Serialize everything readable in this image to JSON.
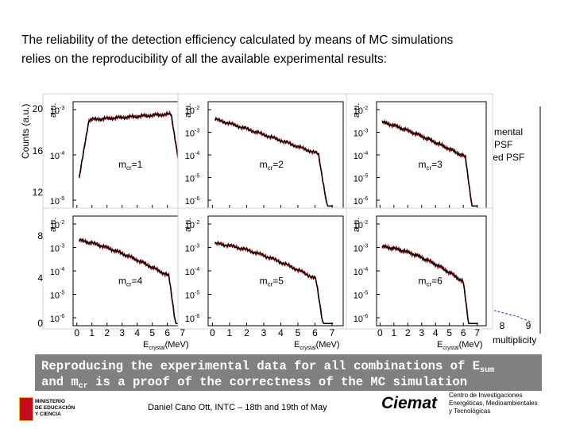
{
  "intro": [
    "The reliability of the detection efficiency calculated by means of MC simulations",
    "relies on the reproducibility of all the available experimental results:"
  ],
  "background_left": {
    "ylabel": "Counts (a.u.)",
    "yticks": [
      20,
      16,
      12,
      8,
      4,
      0
    ]
  },
  "background_right": {
    "legend": [
      "mental",
      "PSF",
      "ted PSF"
    ],
    "xlabel": "multiplicity",
    "xticks": [
      8,
      9
    ]
  },
  "panels": [
    {
      "ylabel": "a.u.",
      "yticks": [
        {
          "base": "10",
          "exp": "-3"
        },
        {
          "base": "10",
          "exp": "-4"
        },
        {
          "base": "10",
          "exp": "-5"
        }
      ],
      "label": {
        "base": "m",
        "sub": "cr",
        "rest": "=1"
      }
    },
    {
      "ylabel": "a.u.",
      "yticks": [
        {
          "base": "10",
          "exp": "-2"
        },
        {
          "base": "10",
          "exp": "-3"
        },
        {
          "base": "10",
          "exp": "-4"
        },
        {
          "base": "10",
          "exp": "-5"
        },
        {
          "base": "10",
          "exp": "-6"
        }
      ],
      "label": {
        "base": "m",
        "sub": "cr",
        "rest": "=2"
      }
    },
    {
      "ylabel": "a.u.",
      "yticks": [
        {
          "base": "10",
          "exp": "-2"
        },
        {
          "base": "10",
          "exp": "-3"
        },
        {
          "base": "10",
          "exp": "-4"
        },
        {
          "base": "10",
          "exp": "-5"
        },
        {
          "base": "10",
          "exp": "-6"
        }
      ],
      "label": {
        "base": "m",
        "sub": "cr",
        "rest": "=3"
      }
    },
    {
      "ylabel": "a.u.",
      "yticks": [
        {
          "base": "10",
          "exp": "-2"
        },
        {
          "base": "10",
          "exp": "-3"
        },
        {
          "base": "10",
          "exp": "-4"
        },
        {
          "base": "10",
          "exp": "-5"
        },
        {
          "base": "10",
          "exp": "-6"
        }
      ],
      "label": {
        "base": "m",
        "sub": "cr",
        "rest": "=4"
      }
    },
    {
      "ylabel": "a.u.",
      "yticks": [
        {
          "base": "10",
          "exp": "-2"
        },
        {
          "base": "10",
          "exp": "-3"
        },
        {
          "base": "10",
          "exp": "-4"
        },
        {
          "base": "10",
          "exp": "-5"
        },
        {
          "base": "10",
          "exp": "-6"
        }
      ],
      "label": {
        "base": "m",
        "sub": "cr",
        "rest": "=5"
      }
    },
    {
      "ylabel": "a.u.",
      "yticks": [
        {
          "base": "10",
          "exp": "-2"
        },
        {
          "base": "10",
          "exp": "-3"
        },
        {
          "base": "10",
          "exp": "-4"
        },
        {
          "base": "10",
          "exp": "-5"
        },
        {
          "base": "10",
          "exp": "-6"
        }
      ],
      "label": {
        "base": "m",
        "sub": "cr",
        "rest": "=6"
      }
    }
  ],
  "xaxis": {
    "ticks": [
      0,
      1,
      2,
      3,
      4,
      5,
      6,
      7
    ],
    "label": {
      "base": "E",
      "sub": "crystal",
      "rest": "(MeV)"
    }
  },
  "banner": {
    "line1": "Reproducing the experimental data for all combinations of E",
    "sub1": "sum",
    "line2a": "and m",
    "sub2": "cr",
    "line2b": " is a proof of the correctness of the MC simulation"
  },
  "footer": {
    "author": "Daniel Cano Ott, INTC – 18th and 19th of May",
    "logo": "Ciemat",
    "institute": [
      "Centro de Investigaciones",
      "Energéticas, Medioambientales",
      "y Tecnológicas"
    ],
    "ministry": [
      "MINISTERIO",
      "DE EDUCACIÓN",
      "Y CIENCIA"
    ]
  }
}
